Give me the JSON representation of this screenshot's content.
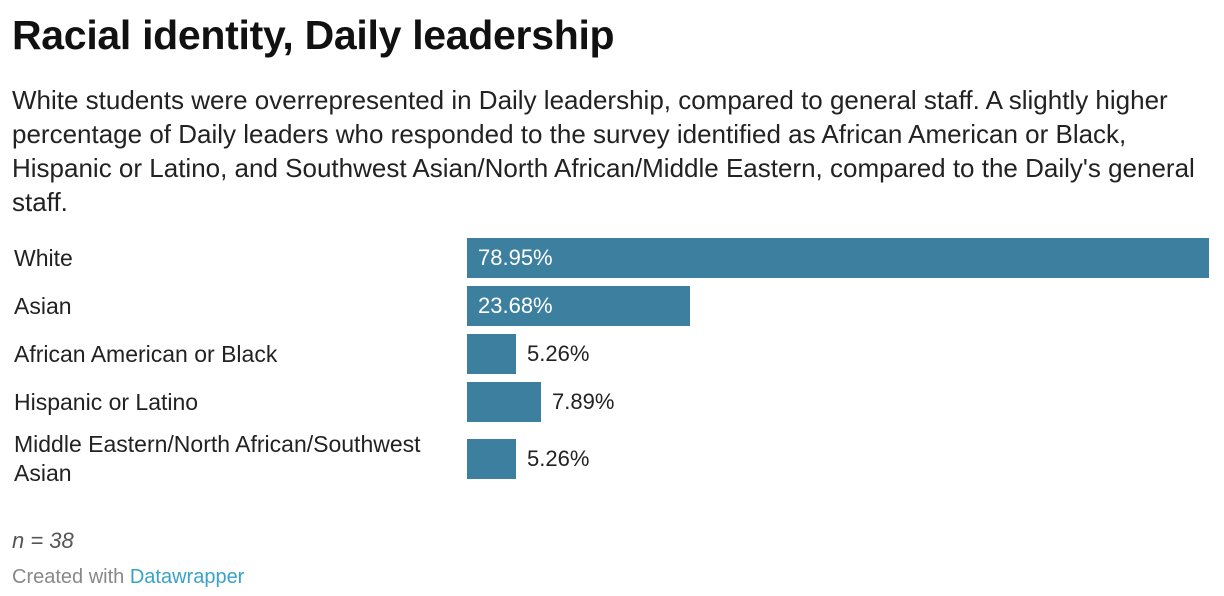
{
  "chart_data": {
    "type": "bar",
    "orientation": "horizontal",
    "title": "Racial identity, Daily leadership",
    "subtitle": "White students were overrepresented in Daily leadership, compared to general staff. A slightly higher percentage of Daily leaders who responded to the survey identified as African American or Black, Hispanic or Latino, and Southwest Asian/North African/Middle Eastern, compared to the Daily's general staff.",
    "categories": [
      "White",
      "Asian",
      "African American or Black",
      "Hispanic or Latino",
      "Middle Eastern/North African/Southwest Asian"
    ],
    "values": [
      78.95,
      23.68,
      5.26,
      7.89,
      5.26
    ],
    "value_labels": [
      "78.95%",
      "23.68%",
      "5.26%",
      "7.89%",
      "5.26%"
    ],
    "xlim": [
      0,
      78.95
    ],
    "grid": false,
    "bar_color": "#3d7f9e"
  },
  "notes": "n = 38",
  "credit": {
    "prefix": "Created with ",
    "link_label": "Datawrapper"
  },
  "colors": {
    "bar": "#3d7f9e",
    "link": "#3aa1c9"
  }
}
